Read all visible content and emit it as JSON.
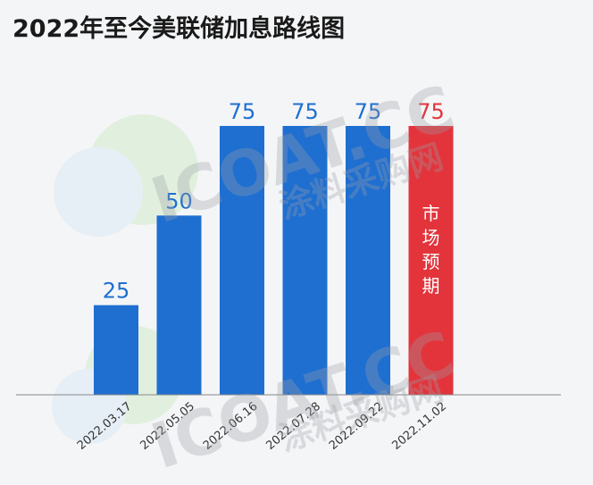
{
  "title": "2022年至今美联储加息路线图",
  "watermark": {
    "brand": "ICOAT.CC",
    "subtitle": "涂料采购网"
  },
  "colors": {
    "bar": "#1f6fd1",
    "highlight": "#e3343c",
    "value_blue": "#1f6fd1",
    "value_red": "#e3343c",
    "axis": "#888888",
    "background": "#f4f5f7"
  },
  "chart_data": {
    "type": "bar",
    "title": "2022年至今美联储加息路线图",
    "categories": [
      "2022.03.17",
      "2022.05.05",
      "2022.06.16",
      "2022.07.28",
      "2022.09.22",
      "2022.11.02"
    ],
    "values": [
      25,
      50,
      75,
      75,
      75,
      75
    ],
    "data_labels": [
      "25",
      "50",
      "75",
      "75",
      "75",
      "75"
    ],
    "highlight_index": 5,
    "highlight_label": "市场预期",
    "ylim": [
      0,
      75
    ],
    "grid": false,
    "legend": "none",
    "xlabel": "",
    "ylabel": ""
  }
}
